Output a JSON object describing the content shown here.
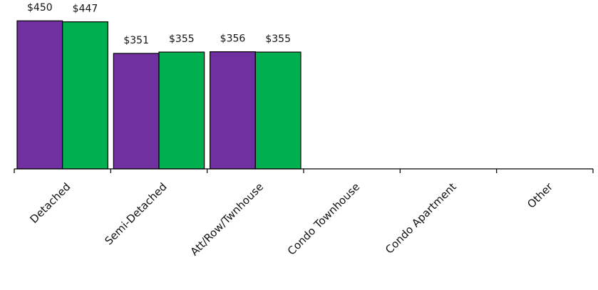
{
  "chart_data": {
    "type": "bar",
    "categories": [
      "Detached",
      "Semi-Detached",
      "Att/Row/Twnhouse",
      "Condo Townhouse",
      "Condo Apartment",
      "Other"
    ],
    "series": [
      {
        "color": "#7030A0",
        "values": [
          450,
          351,
          356,
          null,
          null,
          null
        ],
        "labels": [
          "$450",
          "$351",
          "$356",
          "",
          "",
          ""
        ]
      },
      {
        "color": "#00B050",
        "values": [
          447,
          355,
          355,
          null,
          null,
          null
        ],
        "labels": [
          "$447",
          "$355",
          "$355",
          "",
          "",
          ""
        ]
      }
    ],
    "ylim": [
      0,
      470
    ],
    "grid": false,
    "legend": "none",
    "title": "",
    "xlabel": "",
    "ylabel": ""
  }
}
